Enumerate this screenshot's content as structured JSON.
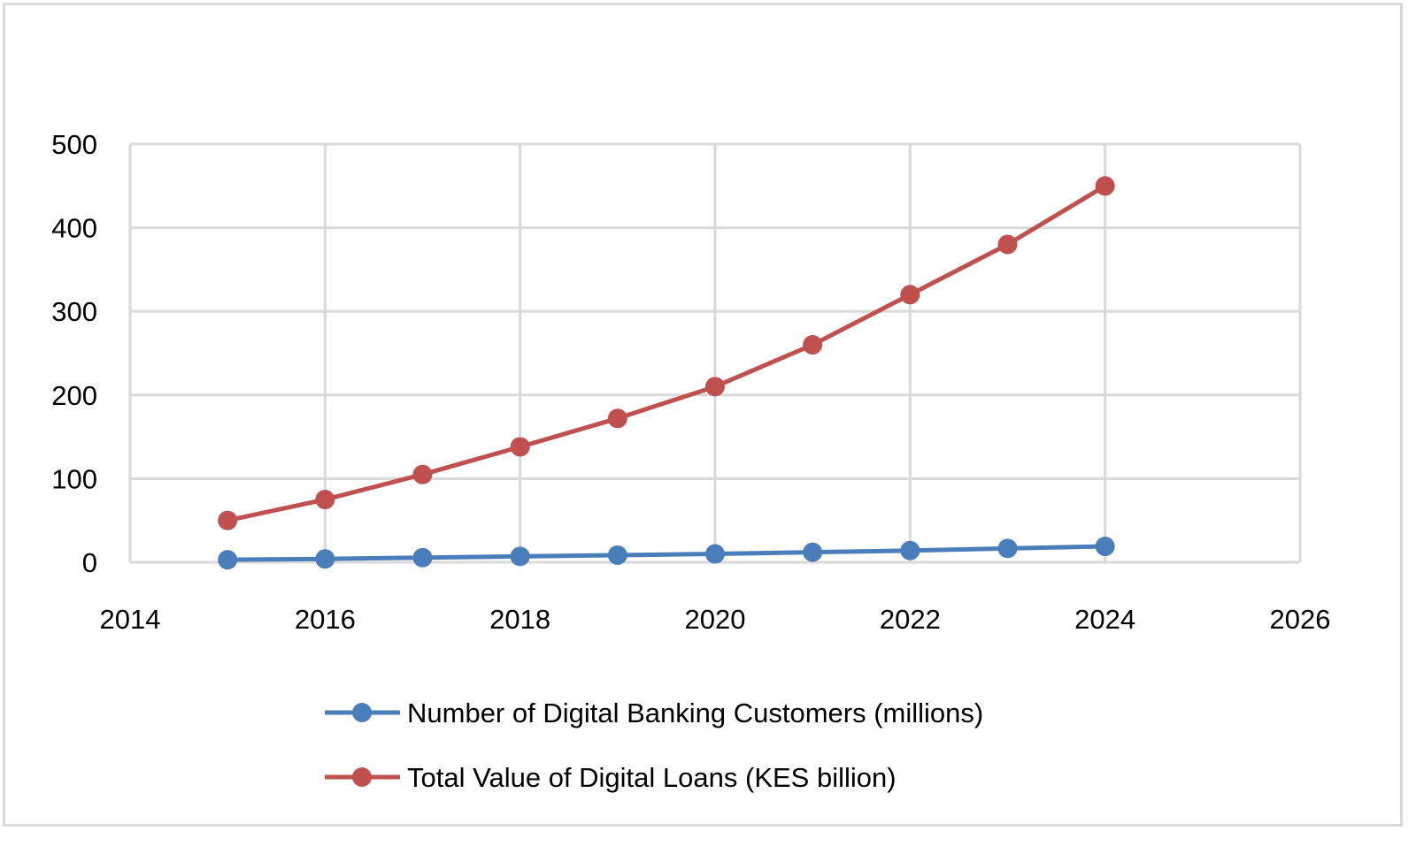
{
  "chart_data": {
    "type": "line",
    "title": "",
    "xlabel": "",
    "ylabel": "",
    "xlim": [
      2014,
      2026
    ],
    "ylim": [
      0,
      500
    ],
    "x_ticks": [
      2014,
      2016,
      2018,
      2020,
      2022,
      2024,
      2026
    ],
    "y_ticks": [
      0,
      100,
      200,
      300,
      400,
      500
    ],
    "grid": true,
    "legend_position": "bottom",
    "x": [
      2015,
      2016,
      2017,
      2018,
      2019,
      2020,
      2021,
      2022,
      2023,
      2024
    ],
    "series": [
      {
        "name": "Number of Digital Banking Customers (millions)",
        "color": "#4a7ebb",
        "marker": "circle",
        "values": [
          3,
          4,
          5.5,
          7,
          8.5,
          10,
          12,
          14,
          16.5,
          19
        ]
      },
      {
        "name": "Total Value of Digital Loans (KES billion)",
        "color": "#c0504d",
        "marker": "circle",
        "values": [
          50,
          75,
          105,
          138,
          172,
          210,
          260,
          320,
          380,
          450
        ]
      }
    ]
  },
  "legend": {
    "items": [
      {
        "label": "Number of Digital Banking Customers (millions)",
        "color": "#4a7ebb"
      },
      {
        "label": "Total Value of Digital Loans (KES billion)",
        "color": "#c0504d"
      }
    ]
  },
  "style": {
    "grid_color": "#d9d9d9",
    "frame_color": "#d9d9d9"
  }
}
